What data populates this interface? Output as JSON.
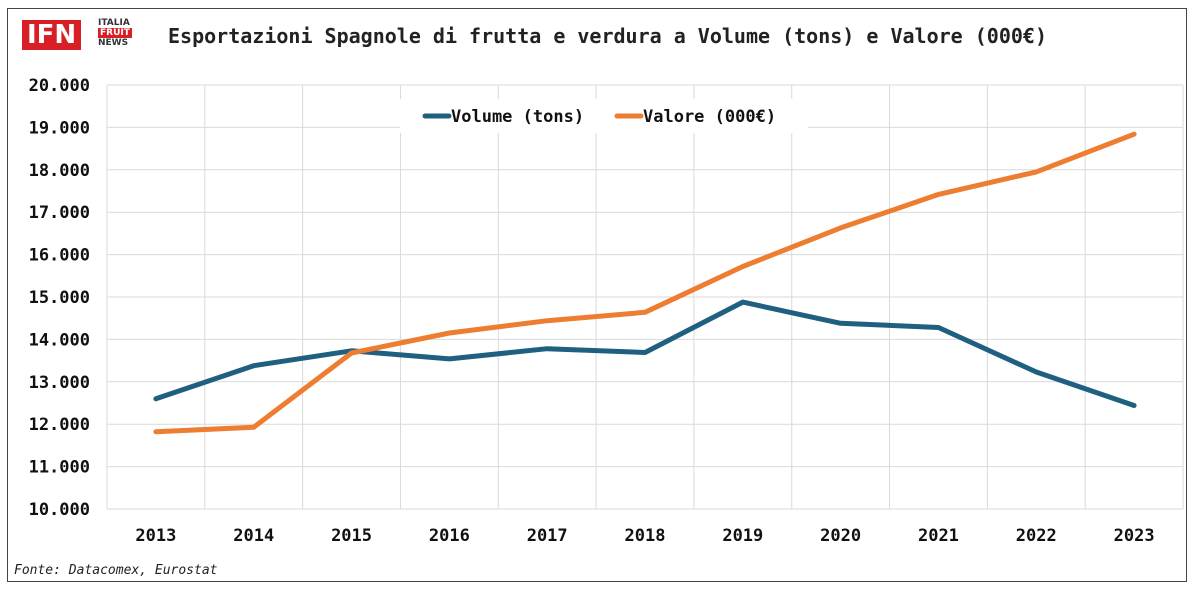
{
  "logo": {
    "main": "IFN",
    "line1": "ITALIA",
    "line2": "FRUIT",
    "line3": "NEWS"
  },
  "chart_data": {
    "type": "line",
    "title": "Esportazioni Spagnole di frutta e verdura a Volume (tons) e Valore (000€)",
    "categories": [
      "2013",
      "2014",
      "2015",
      "2016",
      "2017",
      "2018",
      "2019",
      "2020",
      "2021",
      "2022",
      "2023"
    ],
    "series": [
      {
        "name": "Volume (tons)",
        "color": "#1f5f80",
        "values": [
          12600,
          13380,
          13730,
          13540,
          13780,
          13690,
          14880,
          14380,
          14280,
          13230,
          12440
        ]
      },
      {
        "name": "Valore (000€)",
        "color": "#ed7d31",
        "values": [
          11820,
          11930,
          13680,
          14150,
          14440,
          14640,
          15720,
          16630,
          17420,
          17950,
          18840
        ]
      }
    ],
    "ylim": [
      10000,
      20000
    ],
    "yticks": [
      "10.000",
      "11.000",
      "12.000",
      "13.000",
      "14.000",
      "15.000",
      "16.000",
      "17.000",
      "18.000",
      "19.000",
      "20.000"
    ],
    "grid": true,
    "legend_position": "top-center",
    "source": "Fonte: Datacomex, Eurostat"
  }
}
